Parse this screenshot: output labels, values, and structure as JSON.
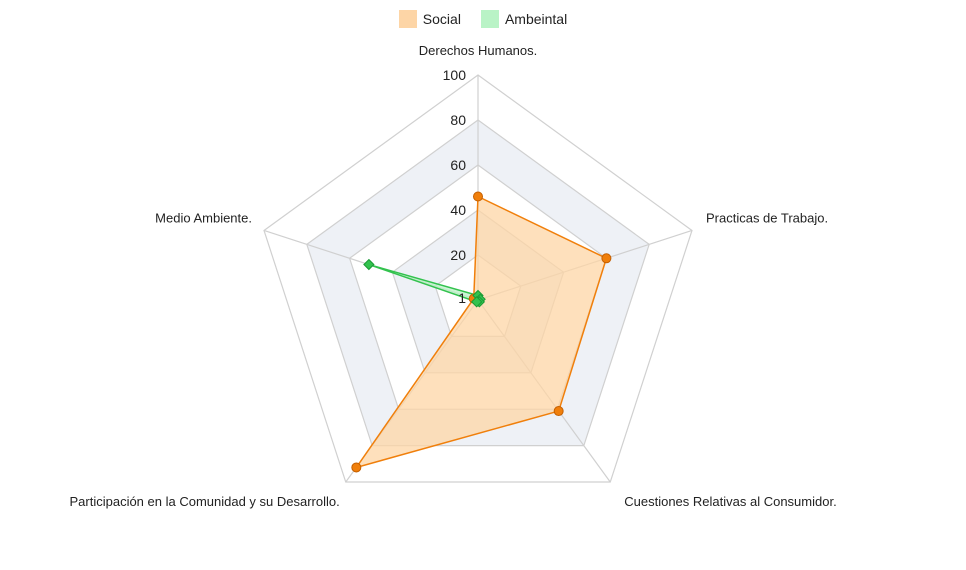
{
  "chart_data": {
    "type": "radar",
    "axes": [
      "Derechos Humanos.",
      "Practicas de Trabajo.",
      "Cuestiones Relativas al Consumidor.",
      "Participación en la Comunidad y su Desarrollo.",
      "Medio Ambiente."
    ],
    "ticks": [
      "1",
      "20",
      "40",
      "60",
      "80",
      "100"
    ],
    "tick_values": [
      1,
      20,
      40,
      60,
      80,
      100
    ],
    "rmin": 0,
    "rmax": 100,
    "series": [
      {
        "name": "Social",
        "values": [
          46,
          60,
          61,
          92,
          2
        ],
        "stroke": "#f07f0b",
        "fill": "#fdd5a6",
        "point": "circle"
      },
      {
        "name": "Ambeintal",
        "values": [
          2,
          1,
          1,
          1,
          51
        ],
        "stroke": "#33c24e",
        "fill": "#b9f3c6",
        "point": "diamond"
      }
    ],
    "legend_position": "top-center",
    "colors": {
      "grid": "#d0d0d0",
      "band": "#eef1f6"
    }
  }
}
